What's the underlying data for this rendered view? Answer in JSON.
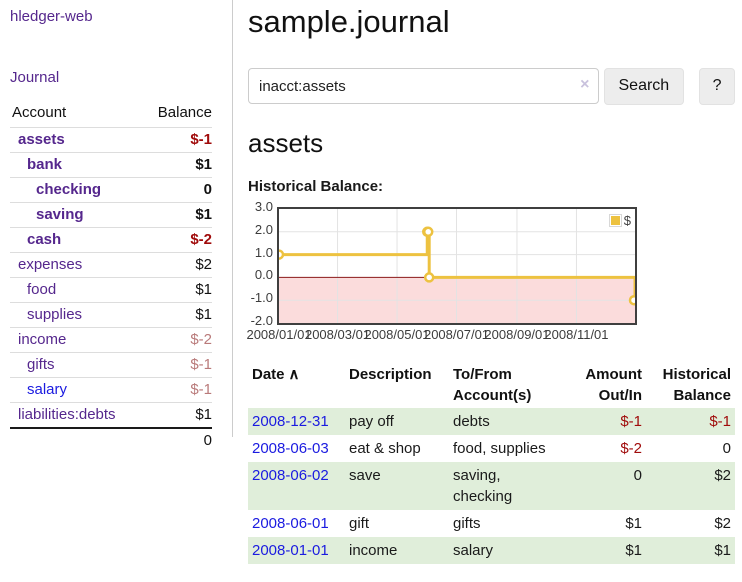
{
  "sidebar": {
    "app_title": "hledger-web",
    "journal_label": "Journal",
    "accounts_table": {
      "headers": {
        "account": "Account",
        "balance": "Balance"
      },
      "rows": [
        {
          "name": "assets",
          "balance": "$-1",
          "depth": 0,
          "bold": true,
          "balance_style": "neg-strong",
          "link_style": "purple"
        },
        {
          "name": "bank",
          "balance": "$1",
          "depth": 1,
          "bold": true,
          "balance_style": "pos",
          "link_style": "purple"
        },
        {
          "name": "checking",
          "balance": "0",
          "depth": 2,
          "bold": true,
          "balance_style": "pos",
          "link_style": "purple"
        },
        {
          "name": "saving",
          "balance": "$1",
          "depth": 2,
          "bold": true,
          "balance_style": "pos",
          "link_style": "purple"
        },
        {
          "name": "cash",
          "balance": "$-2",
          "depth": 1,
          "bold": true,
          "balance_style": "neg-strong",
          "link_style": "purple"
        },
        {
          "name": "expenses",
          "balance": "$2",
          "depth": 0,
          "bold": false,
          "balance_style": "pos",
          "link_style": "purple"
        },
        {
          "name": "food",
          "balance": "$1",
          "depth": 1,
          "bold": false,
          "balance_style": "pos",
          "link_style": "purple"
        },
        {
          "name": "supplies",
          "balance": "$1",
          "depth": 1,
          "bold": false,
          "balance_style": "pos",
          "link_style": "purple"
        },
        {
          "name": "income",
          "balance": "$-2",
          "depth": 0,
          "bold": false,
          "balance_style": "neg-muted",
          "link_style": "purple"
        },
        {
          "name": "gifts",
          "balance": "$-1",
          "depth": 1,
          "bold": false,
          "balance_style": "neg-muted",
          "link_style": "purple"
        },
        {
          "name": "salary",
          "balance": "$-1",
          "depth": 1,
          "bold": false,
          "balance_style": "neg-muted",
          "link_style": "blue"
        },
        {
          "name": "liabilities:debts",
          "balance": "$1",
          "depth": 0,
          "bold": false,
          "balance_style": "pos",
          "link_style": "purple"
        }
      ],
      "total": "0"
    }
  },
  "main": {
    "title": "sample.journal",
    "search": {
      "value": "inacct:assets",
      "button_label": "Search",
      "help_label": "?"
    },
    "account_heading": "assets",
    "chart_heading": "Historical Balance:"
  },
  "icons": {
    "clear": "×",
    "sort_up": "∧"
  },
  "chart_data": {
    "type": "line",
    "title": "Historical Balance:",
    "step": true,
    "legend_label": "$",
    "legend_position": "top-right",
    "grid": true,
    "x_range": [
      "2008-01-01",
      "2008-12-31"
    ],
    "y_range": [
      -2,
      3
    ],
    "series": [
      {
        "name": "$",
        "points": [
          {
            "x": "2008-01-01",
            "y": 1
          },
          {
            "x": "2008-06-01",
            "y": 2
          },
          {
            "x": "2008-06-02",
            "y": 2
          },
          {
            "x": "2008-06-03",
            "y": 0
          },
          {
            "x": "2008-12-31",
            "y": -1
          }
        ]
      }
    ],
    "x_ticks": [
      {
        "date": "2008-01-01",
        "label": "2008/01/01"
      },
      {
        "date": "2008-03-01",
        "label": "2008/03/01"
      },
      {
        "date": "2008-05-01",
        "label": "2008/05/01"
      },
      {
        "date": "2008-07-01",
        "label": "2008/07/01"
      },
      {
        "date": "2008-09-01",
        "label": "2008/09/01"
      },
      {
        "date": "2008-11-01",
        "label": "2008/11/01"
      }
    ],
    "y_ticks": [
      {
        "value": 3,
        "label": "3.0"
      },
      {
        "value": 2,
        "label": "2.0"
      },
      {
        "value": 1,
        "label": "1.0"
      },
      {
        "value": 0,
        "label": "0.0"
      },
      {
        "value": -1,
        "label": "-1.0"
      },
      {
        "value": -2,
        "label": "-2.0"
      }
    ],
    "colors": {
      "line": "#edc240",
      "marker_fill": "#ffffff",
      "negative_region": "#fbdcdc",
      "zero_line": "#8b1a1a",
      "grid": "#e3e3e3",
      "border": "#3f3f3f"
    }
  },
  "register_table": {
    "headers": [
      {
        "line1": "Date",
        "line2": "",
        "align": "left",
        "sortable": true
      },
      {
        "line1": "Description",
        "line2": "",
        "align": "left",
        "sortable": false
      },
      {
        "line1": "To/From",
        "line2": "Account(s)",
        "align": "left",
        "sortable": false
      },
      {
        "line1": "Amount",
        "line2": "Out/In",
        "align": "right",
        "sortable": false
      },
      {
        "line1": "Historical",
        "line2": "Balance",
        "align": "right",
        "sortable": false
      }
    ],
    "rows": [
      {
        "date": "2008-12-31",
        "description": "pay off",
        "accounts": "debts",
        "amount": "$-1",
        "amount_neg": true,
        "balance": "$-1",
        "balance_neg": true,
        "shaded": true
      },
      {
        "date": "2008-06-03",
        "description": "eat & shop",
        "accounts": "food, supplies",
        "amount": "$-2",
        "amount_neg": true,
        "balance": "0",
        "balance_neg": false,
        "shaded": false
      },
      {
        "date": "2008-06-02",
        "description": "save",
        "accounts": "saving, checking",
        "amount": "0",
        "amount_neg": false,
        "balance": "$2",
        "balance_neg": false,
        "shaded": true
      },
      {
        "date": "2008-06-01",
        "description": "gift",
        "accounts": "gifts",
        "amount": "$1",
        "amount_neg": false,
        "balance": "$2",
        "balance_neg": false,
        "shaded": false
      },
      {
        "date": "2008-01-01",
        "description": "income",
        "accounts": "salary",
        "amount": "$1",
        "amount_neg": false,
        "balance": "$1",
        "balance_neg": false,
        "shaded": true
      }
    ]
  }
}
